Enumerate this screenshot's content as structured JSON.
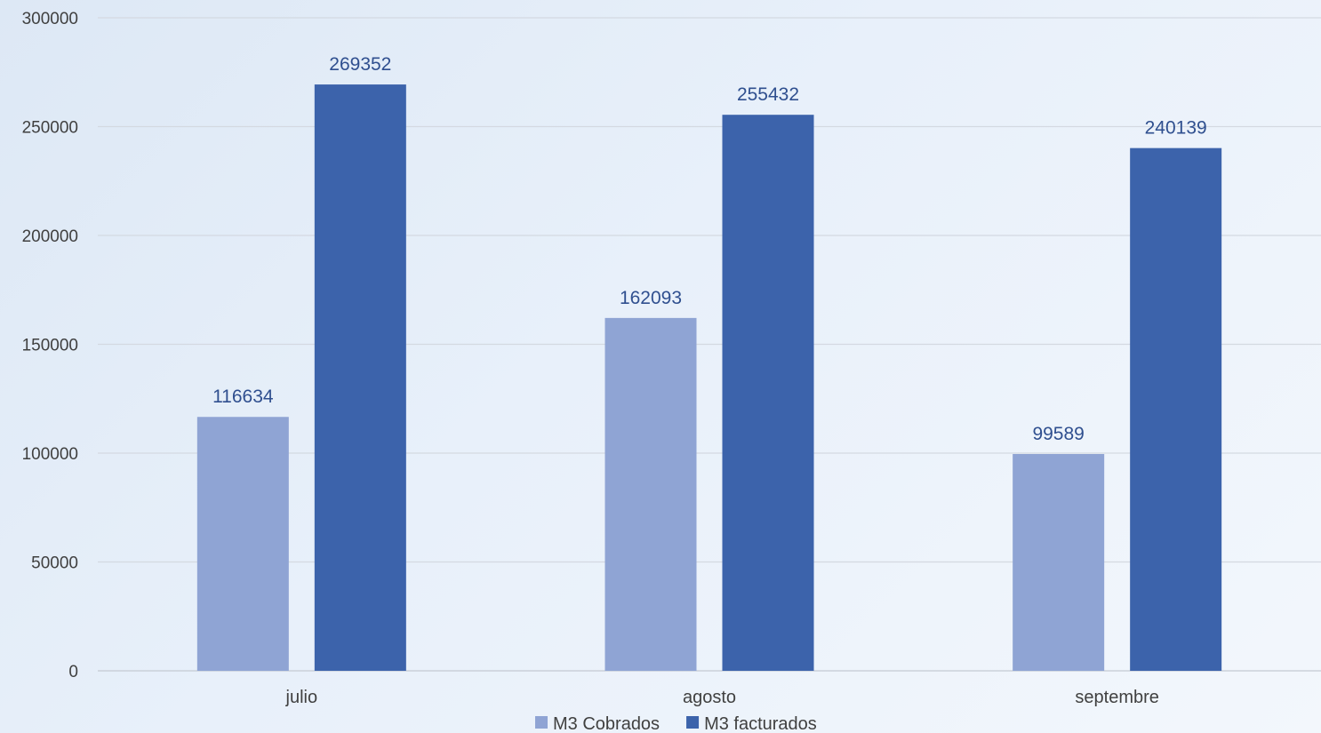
{
  "chart_data": {
    "type": "bar",
    "title": "",
    "xlabel": "",
    "ylabel": "",
    "categories": [
      "julio",
      "agosto",
      "septembre"
    ],
    "series": [
      {
        "name": "M3 Cobrados",
        "values": [
          116634,
          162093,
          99589
        ],
        "color": "#8fa4d4"
      },
      {
        "name": "M3 facturados",
        "values": [
          269352,
          255432,
          240139
        ],
        "color": "#3c63ab"
      }
    ],
    "ylim": [
      0,
      300000
    ],
    "yticks": [
      0,
      50000,
      100000,
      150000,
      200000,
      250000,
      300000
    ],
    "grid": true,
    "legend": "bottom",
    "data_labels": true
  }
}
